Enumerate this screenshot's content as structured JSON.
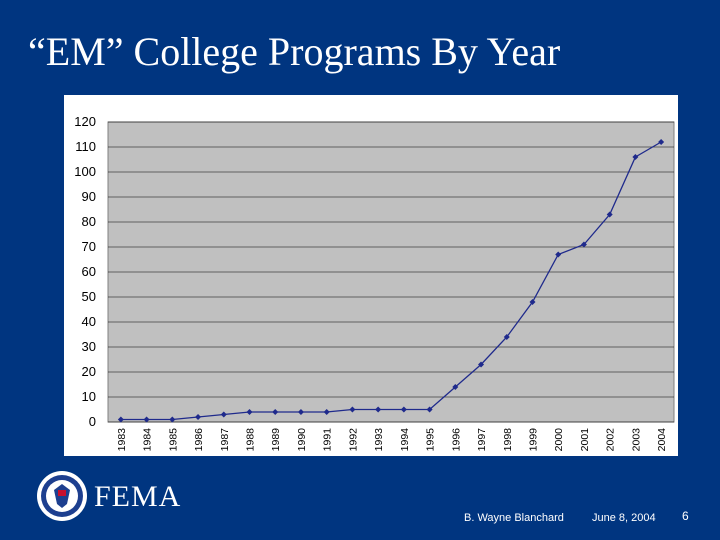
{
  "slide": {
    "title": "“EM” College Programs By Year",
    "footer_author": "B. Wayne Blanchard",
    "footer_date": "June 8, 2004",
    "page_number": "6",
    "logo_text": "FEMA"
  },
  "colors": {
    "background": "#003580",
    "plot_background": "#c0c0c0",
    "series": "#1f2a8c"
  },
  "chart_data": {
    "type": "line",
    "title": "",
    "xlabel": "",
    "ylabel": "",
    "categories": [
      "1983",
      "1984",
      "1985",
      "1986",
      "1987",
      "1988",
      "1989",
      "1990",
      "1991",
      "1992",
      "1993",
      "1994",
      "1995",
      "1996",
      "1997",
      "1998",
      "1999",
      "2000",
      "2001",
      "2002",
      "2003",
      "2004"
    ],
    "series": [
      {
        "values": [
          1,
          1,
          1,
          2,
          3,
          4,
          4,
          4,
          4,
          5,
          5,
          5,
          5,
          14,
          23,
          34,
          48,
          67,
          71,
          83,
          106,
          112
        ]
      }
    ],
    "ylim": [
      0,
      120
    ],
    "yticks": [
      0,
      10,
      20,
      30,
      40,
      50,
      60,
      70,
      80,
      90,
      100,
      110,
      120
    ],
    "grid": true,
    "legend": "none"
  }
}
